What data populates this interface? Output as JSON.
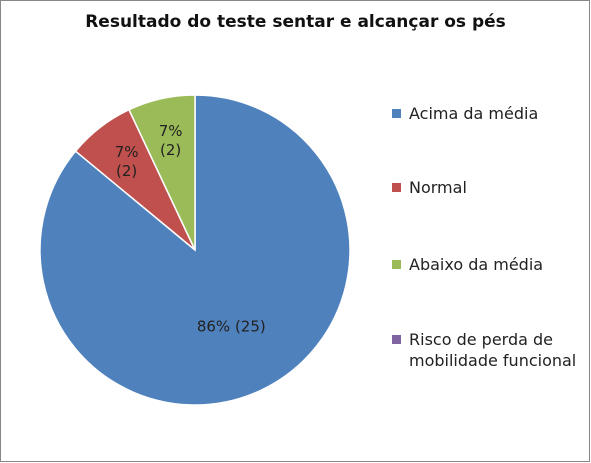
{
  "chart_data": {
    "type": "pie",
    "title": "Resultado do teste sentar e alcançar os pés",
    "categories": [
      "Acima da média",
      "Normal",
      "Abaixo da média",
      "Risco de perda de mobilidade funcional"
    ],
    "values": [
      86,
      7,
      7,
      0
    ],
    "value_labels": [
      "86% (25)",
      "7% (2)",
      "7% (2)",
      null
    ],
    "colors": [
      "#4f81bd",
      "#c0504d",
      "#9bbb59",
      "#8064a2"
    ],
    "legend": "right"
  }
}
